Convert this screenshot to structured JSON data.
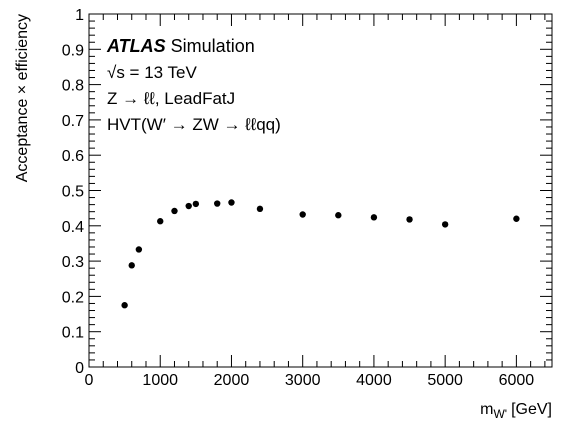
{
  "chart_data": {
    "type": "scatter",
    "xlabel": "m",
    "xlabel_sub": "W'",
    "xlabel_unit": "[GeV]",
    "ylabel": "Acceptance × efficiency",
    "xlim": [
      0,
      6500
    ],
    "ylim": [
      0,
      1
    ],
    "x_ticks": [
      0,
      1000,
      2000,
      3000,
      4000,
      5000,
      6000
    ],
    "x_tick_labels": [
      "0",
      "1000",
      "2000",
      "3000",
      "4000",
      "5000",
      "6000"
    ],
    "y_ticks": [
      0,
      0.1,
      0.2,
      0.3,
      0.4,
      0.5,
      0.6,
      0.7,
      0.8,
      0.9,
      1
    ],
    "y_tick_labels": [
      "0",
      "0.1",
      "0.2",
      "0.3",
      "0.4",
      "0.5",
      "0.6",
      "0.7",
      "0.8",
      "0.9",
      "1"
    ],
    "grid": false,
    "marker_color": "#000000",
    "annotations": {
      "atlas": "ATLAS",
      "simulation": "Simulation",
      "sqrt_s": "√s = 13 TeV",
      "channel": "Z → ℓℓ, LeadFatJ",
      "model": "HVT(W′ → ZW → ℓℓqq)"
    },
    "series": [
      {
        "x": [
          500,
          600,
          700,
          1000,
          1200,
          1400,
          1500,
          1800,
          2000,
          2400,
          3000,
          3500,
          4000,
          4500,
          5000,
          6000
        ],
        "y": [
          0.175,
          0.288,
          0.333,
          0.413,
          0.442,
          0.456,
          0.462,
          0.463,
          0.466,
          0.448,
          0.432,
          0.43,
          0.424,
          0.418,
          0.404,
          0.42
        ]
      }
    ]
  }
}
